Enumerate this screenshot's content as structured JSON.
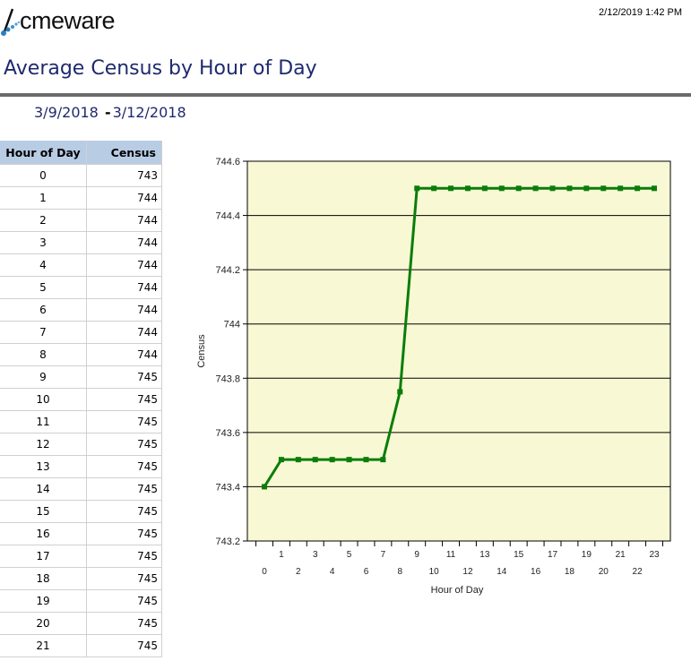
{
  "header": {
    "logo_text": "cmeware",
    "logo_letter": "A",
    "timestamp": "2/12/2019 1:42 PM"
  },
  "report": {
    "title": "Average Census by Hour of Day",
    "date_from": "3/9/2018",
    "date_sep": "-",
    "date_to": "3/12/2018"
  },
  "table": {
    "columns": [
      "Hour of Day",
      "Census"
    ],
    "rows": [
      [
        "0",
        "743"
      ],
      [
        "1",
        "744"
      ],
      [
        "2",
        "744"
      ],
      [
        "3",
        "744"
      ],
      [
        "4",
        "744"
      ],
      [
        "5",
        "744"
      ],
      [
        "6",
        "744"
      ],
      [
        "7",
        "744"
      ],
      [
        "8",
        "744"
      ],
      [
        "9",
        "745"
      ],
      [
        "10",
        "745"
      ],
      [
        "11",
        "745"
      ],
      [
        "12",
        "745"
      ],
      [
        "13",
        "745"
      ],
      [
        "14",
        "745"
      ],
      [
        "15",
        "745"
      ],
      [
        "16",
        "745"
      ],
      [
        "17",
        "745"
      ],
      [
        "18",
        "745"
      ],
      [
        "19",
        "745"
      ],
      [
        "20",
        "745"
      ],
      [
        "21",
        "745"
      ]
    ]
  },
  "chart_data": {
    "type": "line",
    "title": "",
    "xlabel": "Hour of Day",
    "ylabel": "Census",
    "x": [
      0,
      1,
      2,
      3,
      4,
      5,
      6,
      7,
      8,
      9,
      10,
      11,
      12,
      13,
      14,
      15,
      16,
      17,
      18,
      19,
      20,
      21,
      22,
      23
    ],
    "series": [
      {
        "name": "Census",
        "values": [
          743.4,
          743.5,
          743.5,
          743.5,
          743.5,
          743.5,
          743.5,
          743.5,
          743.75,
          744.5,
          744.5,
          744.5,
          744.5,
          744.5,
          744.5,
          744.5,
          744.5,
          744.5,
          744.5,
          744.5,
          744.5,
          744.5,
          744.5,
          744.5
        ],
        "color": "#0a7d0a"
      }
    ],
    "ylim": [
      743.2,
      744.6
    ],
    "yticks": [
      "743.2",
      "743.4",
      "743.6",
      "743.8",
      "744",
      "744.2",
      "744.4",
      "744.6"
    ],
    "grid": true,
    "plot_background": "#f8f8d4",
    "legend": "none"
  }
}
